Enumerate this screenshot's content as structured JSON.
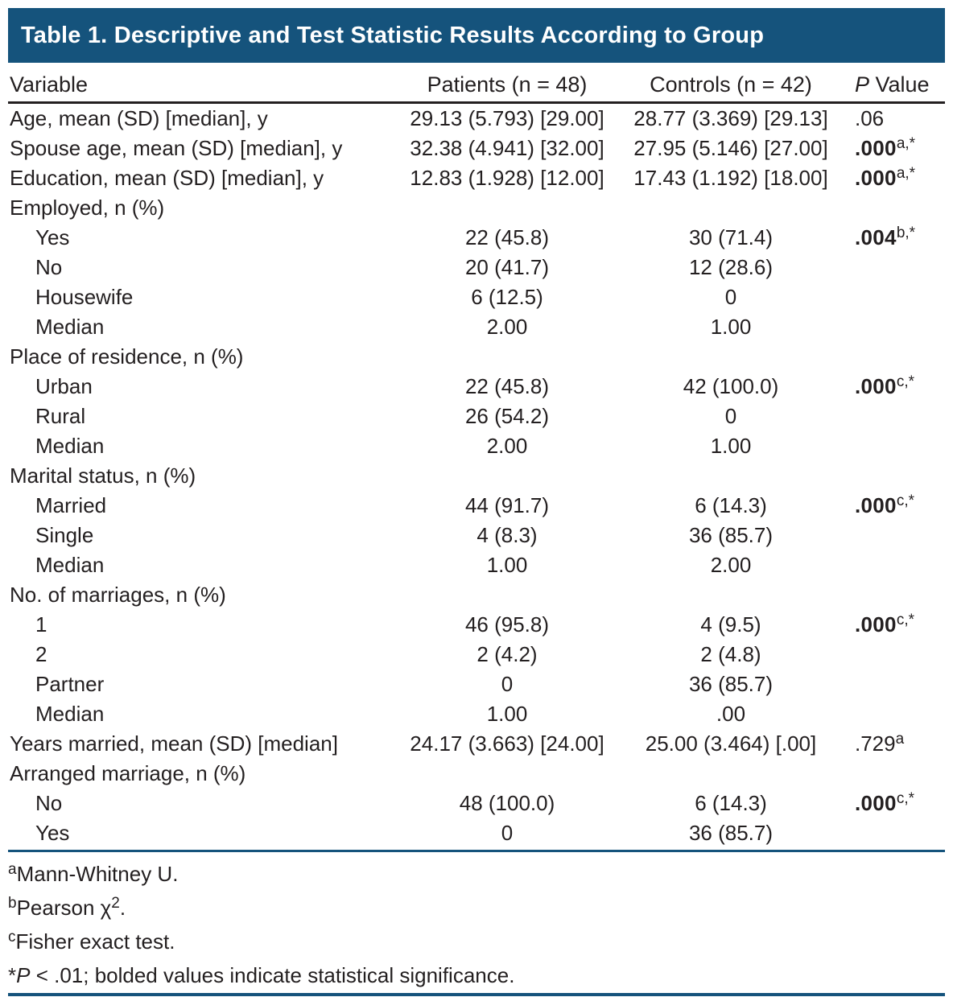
{
  "title": "Table 1. Descriptive and Test Statistic Results According to Group",
  "colors": {
    "accent_blue": "#15537C",
    "text_dark": "#231F20",
    "title_text": "#FFFFFF"
  },
  "columns": {
    "variable": "Variable",
    "patients": "Patients (n = 48)",
    "controls": "Controls (n = 42)",
    "pvalue_italic": "P",
    "pvalue_rest": " Value"
  },
  "rows": [
    {
      "label": "Age, mean (SD) [median], y",
      "indent": false,
      "patients": "29.13 (5.793) [29.00]",
      "controls": "28.77 (3.369) [29.13]",
      "p": ".06",
      "p_bold": false,
      "p_sup": ""
    },
    {
      "label": "Spouse age, mean (SD) [median], y",
      "indent": false,
      "patients": "32.38 (4.941) [32.00]",
      "controls": "27.95 (5.146) [27.00]",
      "p": ".000",
      "p_bold": true,
      "p_sup": "a,*"
    },
    {
      "label": "Education, mean (SD) [median], y",
      "indent": false,
      "patients": "12.83 (1.928) [12.00]",
      "controls": "17.43 (1.192) [18.00]",
      "p": ".000",
      "p_bold": true,
      "p_sup": "a,*"
    },
    {
      "label": "Employed, n (%)",
      "indent": false,
      "patients": "",
      "controls": "",
      "p": "",
      "p_bold": false,
      "p_sup": ""
    },
    {
      "label": "Yes",
      "indent": true,
      "patients": "22 (45.8)",
      "controls": "30 (71.4)",
      "p": ".004",
      "p_bold": true,
      "p_sup": "b,*"
    },
    {
      "label": "No",
      "indent": true,
      "patients": "20 (41.7)",
      "controls": "12 (28.6)",
      "p": "",
      "p_bold": false,
      "p_sup": ""
    },
    {
      "label": "Housewife",
      "indent": true,
      "patients": "6 (12.5)",
      "controls": "0",
      "p": "",
      "p_bold": false,
      "p_sup": ""
    },
    {
      "label": "Median",
      "indent": true,
      "patients": "2.00",
      "controls": "1.00",
      "p": "",
      "p_bold": false,
      "p_sup": ""
    },
    {
      "label": "Place of residence, n (%)",
      "indent": false,
      "patients": "",
      "controls": "",
      "p": "",
      "p_bold": false,
      "p_sup": ""
    },
    {
      "label": "Urban",
      "indent": true,
      "patients": "22 (45.8)",
      "controls": "42 (100.0)",
      "p": ".000",
      "p_bold": true,
      "p_sup": "c,*"
    },
    {
      "label": "Rural",
      "indent": true,
      "patients": "26 (54.2)",
      "controls": "0",
      "p": "",
      "p_bold": false,
      "p_sup": ""
    },
    {
      "label": "Median",
      "indent": true,
      "patients": "2.00",
      "controls": "1.00",
      "p": "",
      "p_bold": false,
      "p_sup": ""
    },
    {
      "label": "Marital status, n (%)",
      "indent": false,
      "patients": "",
      "controls": "",
      "p": "",
      "p_bold": false,
      "p_sup": ""
    },
    {
      "label": "Married",
      "indent": true,
      "patients": "44 (91.7)",
      "controls": "6 (14.3)",
      "p": ".000",
      "p_bold": true,
      "p_sup": "c,*"
    },
    {
      "label": "Single",
      "indent": true,
      "patients": "4 (8.3)",
      "controls": "36 (85.7)",
      "p": "",
      "p_bold": false,
      "p_sup": ""
    },
    {
      "label": "Median",
      "indent": true,
      "patients": "1.00",
      "controls": "2.00",
      "p": "",
      "p_bold": false,
      "p_sup": ""
    },
    {
      "label": "No. of marriages, n (%)",
      "indent": false,
      "patients": "",
      "controls": "",
      "p": "",
      "p_bold": false,
      "p_sup": ""
    },
    {
      "label": "1",
      "indent": true,
      "patients": "46 (95.8)",
      "controls": "4 (9.5)",
      "p": ".000",
      "p_bold": true,
      "p_sup": "c,*"
    },
    {
      "label": "2",
      "indent": true,
      "patients": "2 (4.2)",
      "controls": "2 (4.8)",
      "p": "",
      "p_bold": false,
      "p_sup": ""
    },
    {
      "label": "Partner",
      "indent": true,
      "patients": "0",
      "controls": "36 (85.7)",
      "p": "",
      "p_bold": false,
      "p_sup": ""
    },
    {
      "label": "Median",
      "indent": true,
      "patients": "1.00",
      "controls": ".00",
      "p": "",
      "p_bold": false,
      "p_sup": ""
    },
    {
      "label": "Years married, mean (SD) [median]",
      "indent": false,
      "patients": "24.17 (3.663) [24.00]",
      "controls": "25.00 (3.464) [.00]",
      "p": ".729",
      "p_bold": false,
      "p_sup": "a"
    },
    {
      "label": "Arranged marriage, n (%)",
      "indent": false,
      "patients": "",
      "controls": "",
      "p": "",
      "p_bold": false,
      "p_sup": ""
    },
    {
      "label": "No",
      "indent": true,
      "patients": "48 (100.0)",
      "controls": "6 (14.3)",
      "p": ".000",
      "p_bold": true,
      "p_sup": "c,*"
    },
    {
      "label": "Yes",
      "indent": true,
      "patients": "0",
      "controls": "36 (85.7)",
      "p": "",
      "p_bold": false,
      "p_sup": ""
    }
  ],
  "footnotes": [
    {
      "marker": "a",
      "segments": [
        {
          "t": "Mann-Whitney U."
        }
      ]
    },
    {
      "marker": "b",
      "segments": [
        {
          "t": "Pearson χ"
        },
        {
          "t": "2",
          "sup": true
        },
        {
          "t": "."
        }
      ]
    },
    {
      "marker": "c",
      "segments": [
        {
          "t": "Fisher exact test."
        }
      ]
    },
    {
      "marker": "",
      "segments": [
        {
          "t": "*"
        },
        {
          "t": "P",
          "italic": true
        },
        {
          "t": " < .01; bolded values indicate statistical significance."
        }
      ]
    }
  ]
}
